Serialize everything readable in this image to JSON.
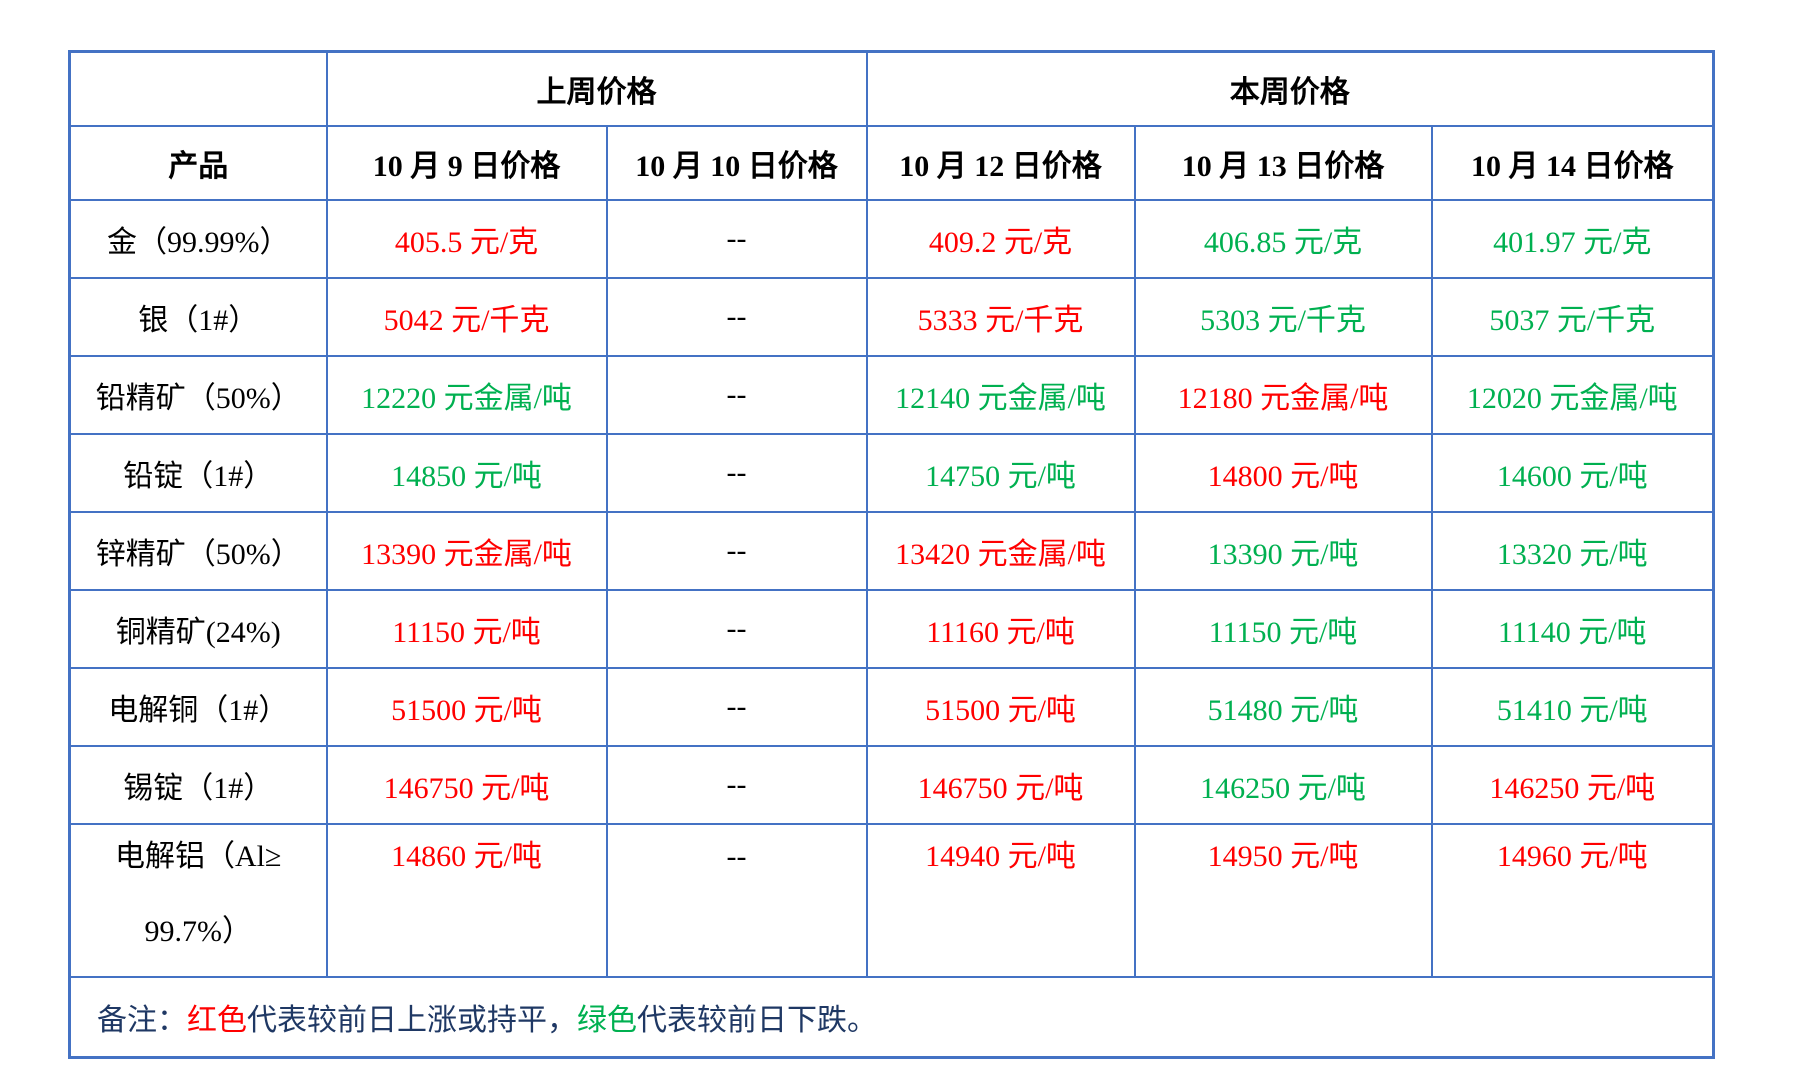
{
  "colors": {
    "up_or_flat": "#FF0000",
    "down": "#00B050",
    "border": "#4472C4",
    "note_text": "#1F3864"
  },
  "header": {
    "corner": "",
    "last_week": "上周价格",
    "this_week": "本周价格",
    "product_col": "产品",
    "date_cols": [
      "10 月 9 日价格",
      "10 月 10 日价格",
      "10 月 12 日价格",
      "10 月 13 日价格",
      "10 月 14 日价格"
    ]
  },
  "rows": [
    {
      "product": "金（99.99%）",
      "prices": [
        {
          "text": "405.5 元/克",
          "color": "red"
        },
        {
          "text": "--",
          "color": "black"
        },
        {
          "text": "409.2 元/克",
          "color": "red"
        },
        {
          "text": "406.85 元/克",
          "color": "green"
        },
        {
          "text": "401.97 元/克",
          "color": "green"
        }
      ]
    },
    {
      "product": "银（1#）",
      "prices": [
        {
          "text": "5042 元/千克",
          "color": "red"
        },
        {
          "text": "--",
          "color": "black"
        },
        {
          "text": "5333 元/千克",
          "color": "red"
        },
        {
          "text": "5303 元/千克",
          "color": "green"
        },
        {
          "text": "5037 元/千克",
          "color": "green"
        }
      ]
    },
    {
      "product": "铅精矿（50%）",
      "prices": [
        {
          "text": "12220 元金属/吨",
          "color": "green"
        },
        {
          "text": "--",
          "color": "black"
        },
        {
          "text": "12140 元金属/吨",
          "color": "green"
        },
        {
          "text": "12180 元金属/吨",
          "color": "red"
        },
        {
          "text": "12020 元金属/吨",
          "color": "green"
        }
      ]
    },
    {
      "product": "铅锭（1#）",
      "prices": [
        {
          "text": "14850 元/吨",
          "color": "green"
        },
        {
          "text": "--",
          "color": "black"
        },
        {
          "text": "14750 元/吨",
          "color": "green"
        },
        {
          "text": "14800 元/吨",
          "color": "red"
        },
        {
          "text": "14600 元/吨",
          "color": "green"
        }
      ]
    },
    {
      "product": "锌精矿（50%）",
      "prices": [
        {
          "text": "13390 元金属/吨",
          "color": "red"
        },
        {
          "text": "--",
          "color": "black"
        },
        {
          "text": "13420 元金属/吨",
          "color": "red"
        },
        {
          "text": "13390 元/吨",
          "color": "green"
        },
        {
          "text": "13320 元/吨",
          "color": "green"
        }
      ]
    },
    {
      "product": "铜精矿(24%)",
      "prices": [
        {
          "text": "11150 元/吨",
          "color": "red"
        },
        {
          "text": "--",
          "color": "black"
        },
        {
          "text": "11160 元/吨",
          "color": "red"
        },
        {
          "text": "11150 元/吨",
          "color": "green"
        },
        {
          "text": "11140 元/吨",
          "color": "green"
        }
      ]
    },
    {
      "product": "电解铜（1#）",
      "prices": [
        {
          "text": "51500 元/吨",
          "color": "red"
        },
        {
          "text": "--",
          "color": "black"
        },
        {
          "text": "51500 元/吨",
          "color": "red"
        },
        {
          "text": "51480 元/吨",
          "color": "green"
        },
        {
          "text": "51410 元/吨",
          "color": "green"
        }
      ]
    },
    {
      "product": "锡锭（1#）",
      "prices": [
        {
          "text": "146750 元/吨",
          "color": "red"
        },
        {
          "text": "--",
          "color": "black"
        },
        {
          "text": "146750 元/吨",
          "color": "red"
        },
        {
          "text": "146250 元/吨",
          "color": "green"
        },
        {
          "text": "146250 元/吨",
          "color": "red"
        }
      ]
    },
    {
      "product_line1": "电解铝（Al≥",
      "product_line2": "99.7%）",
      "prices": [
        {
          "text": "14860 元/吨",
          "color": "red"
        },
        {
          "text": "--",
          "color": "black"
        },
        {
          "text": "14940 元/吨",
          "color": "red"
        },
        {
          "text": "14950 元/吨",
          "color": "red"
        },
        {
          "text": "14960 元/吨",
          "color": "red"
        }
      ]
    }
  ],
  "note": {
    "parts": [
      {
        "text": "备注：",
        "color": "navy"
      },
      {
        "text": "红色",
        "color": "red"
      },
      {
        "text": "代表较前日上涨或持平，",
        "color": "navy"
      },
      {
        "text": "绿色",
        "color": "green"
      },
      {
        "text": "代表较前日下跌。",
        "color": "navy"
      }
    ]
  }
}
